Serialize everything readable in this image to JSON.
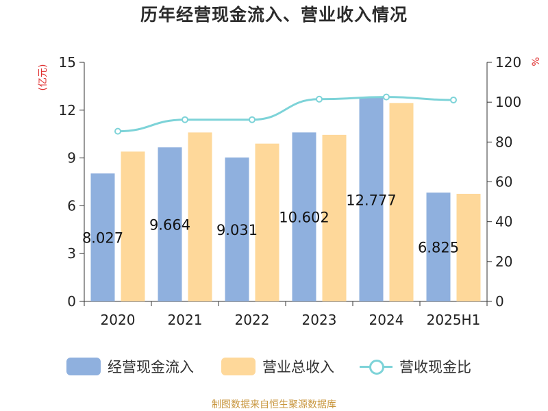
{
  "title": "历年经营现金流入、营业收入情况",
  "source": "制图数据来自恒生聚源数据库",
  "legend": {
    "cash_inflow": "经营现金流入",
    "revenue": "营业总收入",
    "ratio": "营收现金比"
  },
  "colors": {
    "cash_inflow": "#8fb0de",
    "revenue": "#fed89a",
    "ratio": "#7dd3d8",
    "unit_label": "#e03030",
    "axis": "#333333",
    "source": "#c8963e"
  },
  "chart_data": {
    "type": "bar",
    "title": "历年经营现金流入、营业收入情况",
    "categories": [
      "2020",
      "2021",
      "2022",
      "2023",
      "2024",
      "2025H1"
    ],
    "y_left": {
      "unit_label": "(亿元)",
      "ylim": [
        0,
        15
      ],
      "ticks": [
        0,
        3,
        6,
        9,
        12,
        15
      ]
    },
    "y_right": {
      "unit_label": "%",
      "ylim": [
        0,
        120
      ],
      "ticks": [
        0,
        20,
        40,
        60,
        80,
        100,
        120
      ]
    },
    "series": [
      {
        "name": "经营现金流入",
        "type": "bar",
        "axis": "left",
        "values": [
          8.027,
          9.664,
          9.031,
          10.602,
          12.777,
          6.825
        ],
        "labels": [
          "8.027",
          "9.664",
          "9.031",
          "10.602",
          "12.777",
          "6.825"
        ]
      },
      {
        "name": "营业总收入",
        "type": "bar",
        "axis": "left",
        "values": [
          9.4,
          10.6,
          9.9,
          10.45,
          12.45,
          6.75
        ]
      },
      {
        "name": "营收现金比",
        "type": "line",
        "axis": "right",
        "values": [
          85.4,
          91.2,
          91.2,
          101.5,
          102.6,
          101.1
        ]
      }
    ],
    "grid": false,
    "legend_position": "bottom"
  }
}
